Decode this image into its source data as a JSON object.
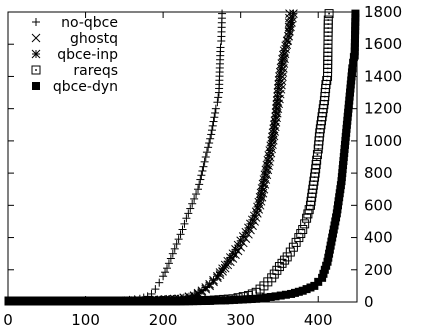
{
  "chart_data": {
    "type": "scatter",
    "title": "",
    "xlabel": "",
    "ylabel": "",
    "xlim": [
      0,
      450
    ],
    "ylim": [
      0,
      1800
    ],
    "x_ticks": [
      "0",
      "100",
      "200",
      "300",
      "400"
    ],
    "y_ticks": [
      "0",
      "200",
      "400",
      "600",
      "800",
      "1000",
      "1200",
      "1400",
      "1600",
      "1800"
    ],
    "y_axis_side": "right",
    "grid": false,
    "legend_position": "top-left",
    "series": [
      {
        "name": "no-qbce",
        "marker": "plus",
        "points": [
          [
            0,
            0
          ],
          [
            40,
            1
          ],
          [
            80,
            2
          ],
          [
            120,
            5
          ],
          [
            150,
            10
          ],
          [
            170,
            20
          ],
          [
            180,
            35
          ],
          [
            185,
            50
          ],
          [
            190,
            80
          ],
          [
            195,
            120
          ],
          [
            200,
            160
          ],
          [
            205,
            210
          ],
          [
            210,
            270
          ],
          [
            215,
            330
          ],
          [
            220,
            390
          ],
          [
            225,
            450
          ],
          [
            230,
            520
          ],
          [
            235,
            580
          ],
          [
            240,
            640
          ],
          [
            245,
            700
          ],
          [
            248,
            760
          ],
          [
            252,
            840
          ],
          [
            255,
            900
          ],
          [
            258,
            960
          ],
          [
            262,
            1040
          ],
          [
            265,
            1120
          ],
          [
            268,
            1200
          ],
          [
            270,
            1240
          ],
          [
            272,
            1300
          ],
          [
            274,
            1580
          ],
          [
            275,
            1620
          ],
          [
            276,
            1790
          ]
        ]
      },
      {
        "name": "ghostq",
        "marker": "x",
        "points": [
          [
            0,
            0
          ],
          [
            60,
            2
          ],
          [
            120,
            5
          ],
          [
            180,
            10
          ],
          [
            220,
            20
          ],
          [
            240,
            35
          ],
          [
            250,
            60
          ],
          [
            260,
            100
          ],
          [
            270,
            150
          ],
          [
            280,
            210
          ],
          [
            290,
            270
          ],
          [
            300,
            340
          ],
          [
            310,
            420
          ],
          [
            318,
            500
          ],
          [
            325,
            600
          ],
          [
            330,
            700
          ],
          [
            335,
            820
          ],
          [
            340,
            950
          ],
          [
            343,
            1030
          ],
          [
            348,
            1200
          ],
          [
            352,
            1320
          ],
          [
            355,
            1450
          ],
          [
            358,
            1570
          ],
          [
            362,
            1650
          ],
          [
            363,
            1790
          ]
        ]
      },
      {
        "name": "qbce-inp",
        "marker": "star",
        "points": [
          [
            0,
            0
          ],
          [
            60,
            2
          ],
          [
            120,
            5
          ],
          [
            180,
            10
          ],
          [
            220,
            20
          ],
          [
            240,
            40
          ],
          [
            250,
            70
          ],
          [
            260,
            110
          ],
          [
            270,
            160
          ],
          [
            280,
            230
          ],
          [
            290,
            300
          ],
          [
            300,
            380
          ],
          [
            310,
            460
          ],
          [
            320,
            560
          ],
          [
            325,
            650
          ],
          [
            330,
            760
          ],
          [
            335,
            880
          ],
          [
            340,
            1000
          ],
          [
            345,
            1150
          ],
          [
            348,
            1300
          ],
          [
            350,
            1400
          ],
          [
            353,
            1480
          ],
          [
            356,
            1560
          ],
          [
            360,
            1620
          ],
          [
            363,
            1680
          ],
          [
            368,
            1790
          ]
        ]
      },
      {
        "name": "rareqs",
        "marker": "square",
        "points": [
          [
            0,
            0
          ],
          [
            100,
            2
          ],
          [
            200,
            5
          ],
          [
            260,
            10
          ],
          [
            290,
            20
          ],
          [
            310,
            40
          ],
          [
            320,
            60
          ],
          [
            330,
            100
          ],
          [
            340,
            150
          ],
          [
            350,
            220
          ],
          [
            360,
            280
          ],
          [
            368,
            340
          ],
          [
            375,
            400
          ],
          [
            380,
            450
          ],
          [
            385,
            520
          ],
          [
            390,
            600
          ],
          [
            393,
            700
          ],
          [
            396,
            800
          ],
          [
            398,
            880
          ],
          [
            400,
            950
          ],
          [
            402,
            1050
          ],
          [
            405,
            1150
          ],
          [
            408,
            1250
          ],
          [
            410,
            1350
          ],
          [
            412,
            1400
          ],
          [
            413,
            1750
          ],
          [
            414,
            1790
          ]
        ]
      },
      {
        "name": "qbce-dyn",
        "marker": "filled-square",
        "points": [
          [
            0,
            0
          ],
          [
            100,
            2
          ],
          [
            200,
            5
          ],
          [
            280,
            10
          ],
          [
            320,
            20
          ],
          [
            345,
            35
          ],
          [
            365,
            50
          ],
          [
            380,
            70
          ],
          [
            395,
            100
          ],
          [
            405,
            150
          ],
          [
            412,
            250
          ],
          [
            416,
            350
          ],
          [
            420,
            450
          ],
          [
            424,
            550
          ],
          [
            427,
            650
          ],
          [
            430,
            750
          ],
          [
            432,
            850
          ],
          [
            434,
            950
          ],
          [
            436,
            1050
          ],
          [
            438,
            1150
          ],
          [
            440,
            1250
          ],
          [
            442,
            1350
          ],
          [
            444,
            1450
          ],
          [
            446,
            1520
          ],
          [
            447,
            1530
          ],
          [
            448,
            1790
          ]
        ]
      }
    ]
  }
}
